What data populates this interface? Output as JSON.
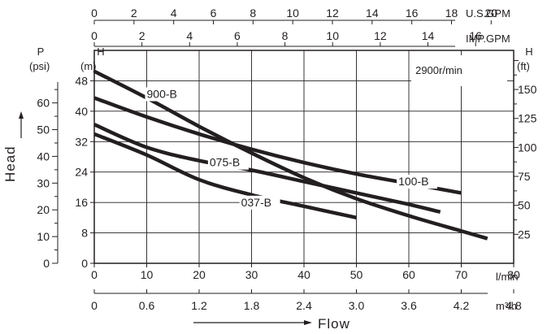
{
  "chart_data": {
    "type": "line",
    "title": "",
    "annotation": "2900r/min",
    "x_axes": {
      "lpm": {
        "ticks": [
          "0",
          "10",
          "20",
          "30",
          "40",
          "50",
          "60",
          "70",
          "80"
        ],
        "unit": "l/min",
        "range": [
          0,
          80
        ]
      },
      "m3h": {
        "ticks": [
          "0",
          "0.6",
          "1.2",
          "1.8",
          "2.4",
          "3.0",
          "3.6",
          "4.2",
          "4.8"
        ],
        "unit": "m³/h",
        "range": [
          0,
          4.8
        ]
      },
      "usgpm": {
        "ticks": [
          "0",
          "2",
          "4",
          "6",
          "8",
          "10",
          "12",
          "14",
          "16",
          "18",
          "20"
        ],
        "unit": "U.S.GPM",
        "range": [
          0,
          20
        ]
      },
      "impgpm": {
        "ticks": [
          "0",
          "2",
          "4",
          "6",
          "8",
          "10",
          "12",
          "14",
          "16"
        ],
        "unit": "IMP.GPM",
        "range": [
          0,
          16
        ]
      }
    },
    "y_axes": {
      "m": {
        "ticks": [
          "0",
          "8",
          "16",
          "24",
          "32",
          "40",
          "48"
        ],
        "label_top": "H",
        "unit": "(m)",
        "range": [
          0,
          56
        ]
      },
      "psi": {
        "ticks": [
          "0",
          "10",
          "20",
          "30",
          "40",
          "50",
          "60"
        ],
        "label_top": "P",
        "unit": "(psi)"
      },
      "ft": {
        "ticks": [
          "25",
          "50",
          "75",
          "100",
          "125",
          "150"
        ],
        "label_top": "H",
        "unit": "(ft)"
      }
    },
    "xlabel": "Flow",
    "ylabel": "Head",
    "grid": true,
    "series": [
      {
        "name": "900-B",
        "x": [
          0,
          10,
          20,
          30,
          40,
          50,
          60,
          70,
          75
        ],
        "y": [
          50.5,
          43.5,
          36,
          29,
          22.5,
          17,
          12.5,
          8.5,
          6.5
        ]
      },
      {
        "name": "100-B",
        "x": [
          0,
          10,
          20,
          30,
          40,
          50,
          60,
          70
        ],
        "y": [
          43.5,
          38.5,
          34,
          30,
          26.5,
          23.5,
          21,
          18.5
        ]
      },
      {
        "name": "075-B",
        "x": [
          0,
          10,
          20,
          30,
          40,
          50,
          60,
          66
        ],
        "y": [
          36.5,
          30.5,
          27,
          24.5,
          21.5,
          18.5,
          15.5,
          13.5
        ]
      },
      {
        "name": "037-B",
        "x": [
          0,
          10,
          20,
          30,
          40,
          50
        ],
        "y": [
          34,
          28.5,
          22,
          18,
          15,
          12
        ]
      }
    ]
  },
  "labels": {
    "annotation": "2900r/min",
    "xlabel": "Flow",
    "ylabel": "Head",
    "usgpm_unit": "U.S.GPM",
    "impgpm_unit": "IMP.GPM",
    "lpm_unit": "l/min",
    "m3h_unit": "m³/h",
    "H_m_top": "H",
    "H_m_unit": "(m)",
    "P_top": "P",
    "P_unit": "(psi)",
    "H_ft_top": "H",
    "H_ft_unit": "(ft)"
  }
}
